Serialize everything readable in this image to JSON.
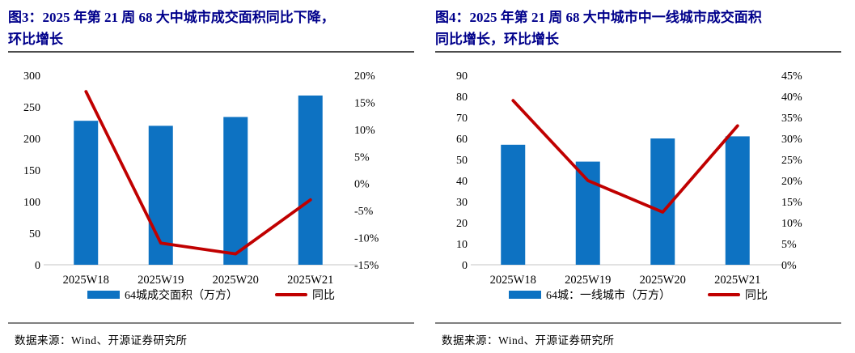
{
  "colors": {
    "bar_blue": "#0D72C2",
    "line_red": "#C00000",
    "title_navy": "#00008B",
    "baseline_gray": "#D9D9D9",
    "rule_dark": "#4d4d4d",
    "rule_light": "#808080"
  },
  "sources": [
    "数据来源：Wind、开源证券研究所",
    "数据来源：Wind、开源证券研究所"
  ],
  "chart_data": [
    {
      "type": "bar",
      "combo": "bar+line",
      "title": "图3：2025 年第 21 周 68 大中城市成交面积同比下降，环比增长",
      "title_lines": [
        "图3：2025 年第 21 周 68 大中城市成交面积同比下降，",
        "环比增长"
      ],
      "categories": [
        "2025W18",
        "2025W19",
        "2025W20",
        "2025W21"
      ],
      "series": [
        {
          "name": "64城成交面积（万方）",
          "type": "bar",
          "axis": "left",
          "values": [
            228,
            220,
            234,
            268
          ]
        },
        {
          "name": "同比",
          "type": "line",
          "axis": "right",
          "unit": "%",
          "values": [
            17,
            -11,
            -13,
            -3
          ]
        }
      ],
      "left_axis": {
        "min": 0,
        "max": 300,
        "step": 50,
        "suffix": ""
      },
      "right_axis": {
        "min": -15,
        "max": 20,
        "step": 5,
        "suffix": "%"
      },
      "grid": false,
      "legend_position": "bottom"
    },
    {
      "type": "bar",
      "combo": "bar+line",
      "title": "图4：2025 年第 21 周 68 大中城市中一线城市成交面积同比增长，环比增长",
      "title_lines": [
        "图4：2025 年第 21 周 68 大中城市中一线城市成交面积",
        "同比增长，环比增长"
      ],
      "categories": [
        "2025W18",
        "2025W19",
        "2025W20",
        "2025W21"
      ],
      "series": [
        {
          "name": "64城：一线城市（万方）",
          "type": "bar",
          "axis": "left",
          "values": [
            57,
            49,
            60,
            61
          ]
        },
        {
          "name": "同比",
          "type": "line",
          "axis": "right",
          "unit": "%",
          "values": [
            39,
            20,
            12.5,
            33
          ]
        }
      ],
      "left_axis": {
        "min": 0,
        "max": 90,
        "step": 10,
        "suffix": ""
      },
      "right_axis": {
        "min": 0,
        "max": 45,
        "step": 5,
        "suffix": "%"
      },
      "grid": false,
      "legend_position": "bottom"
    }
  ]
}
